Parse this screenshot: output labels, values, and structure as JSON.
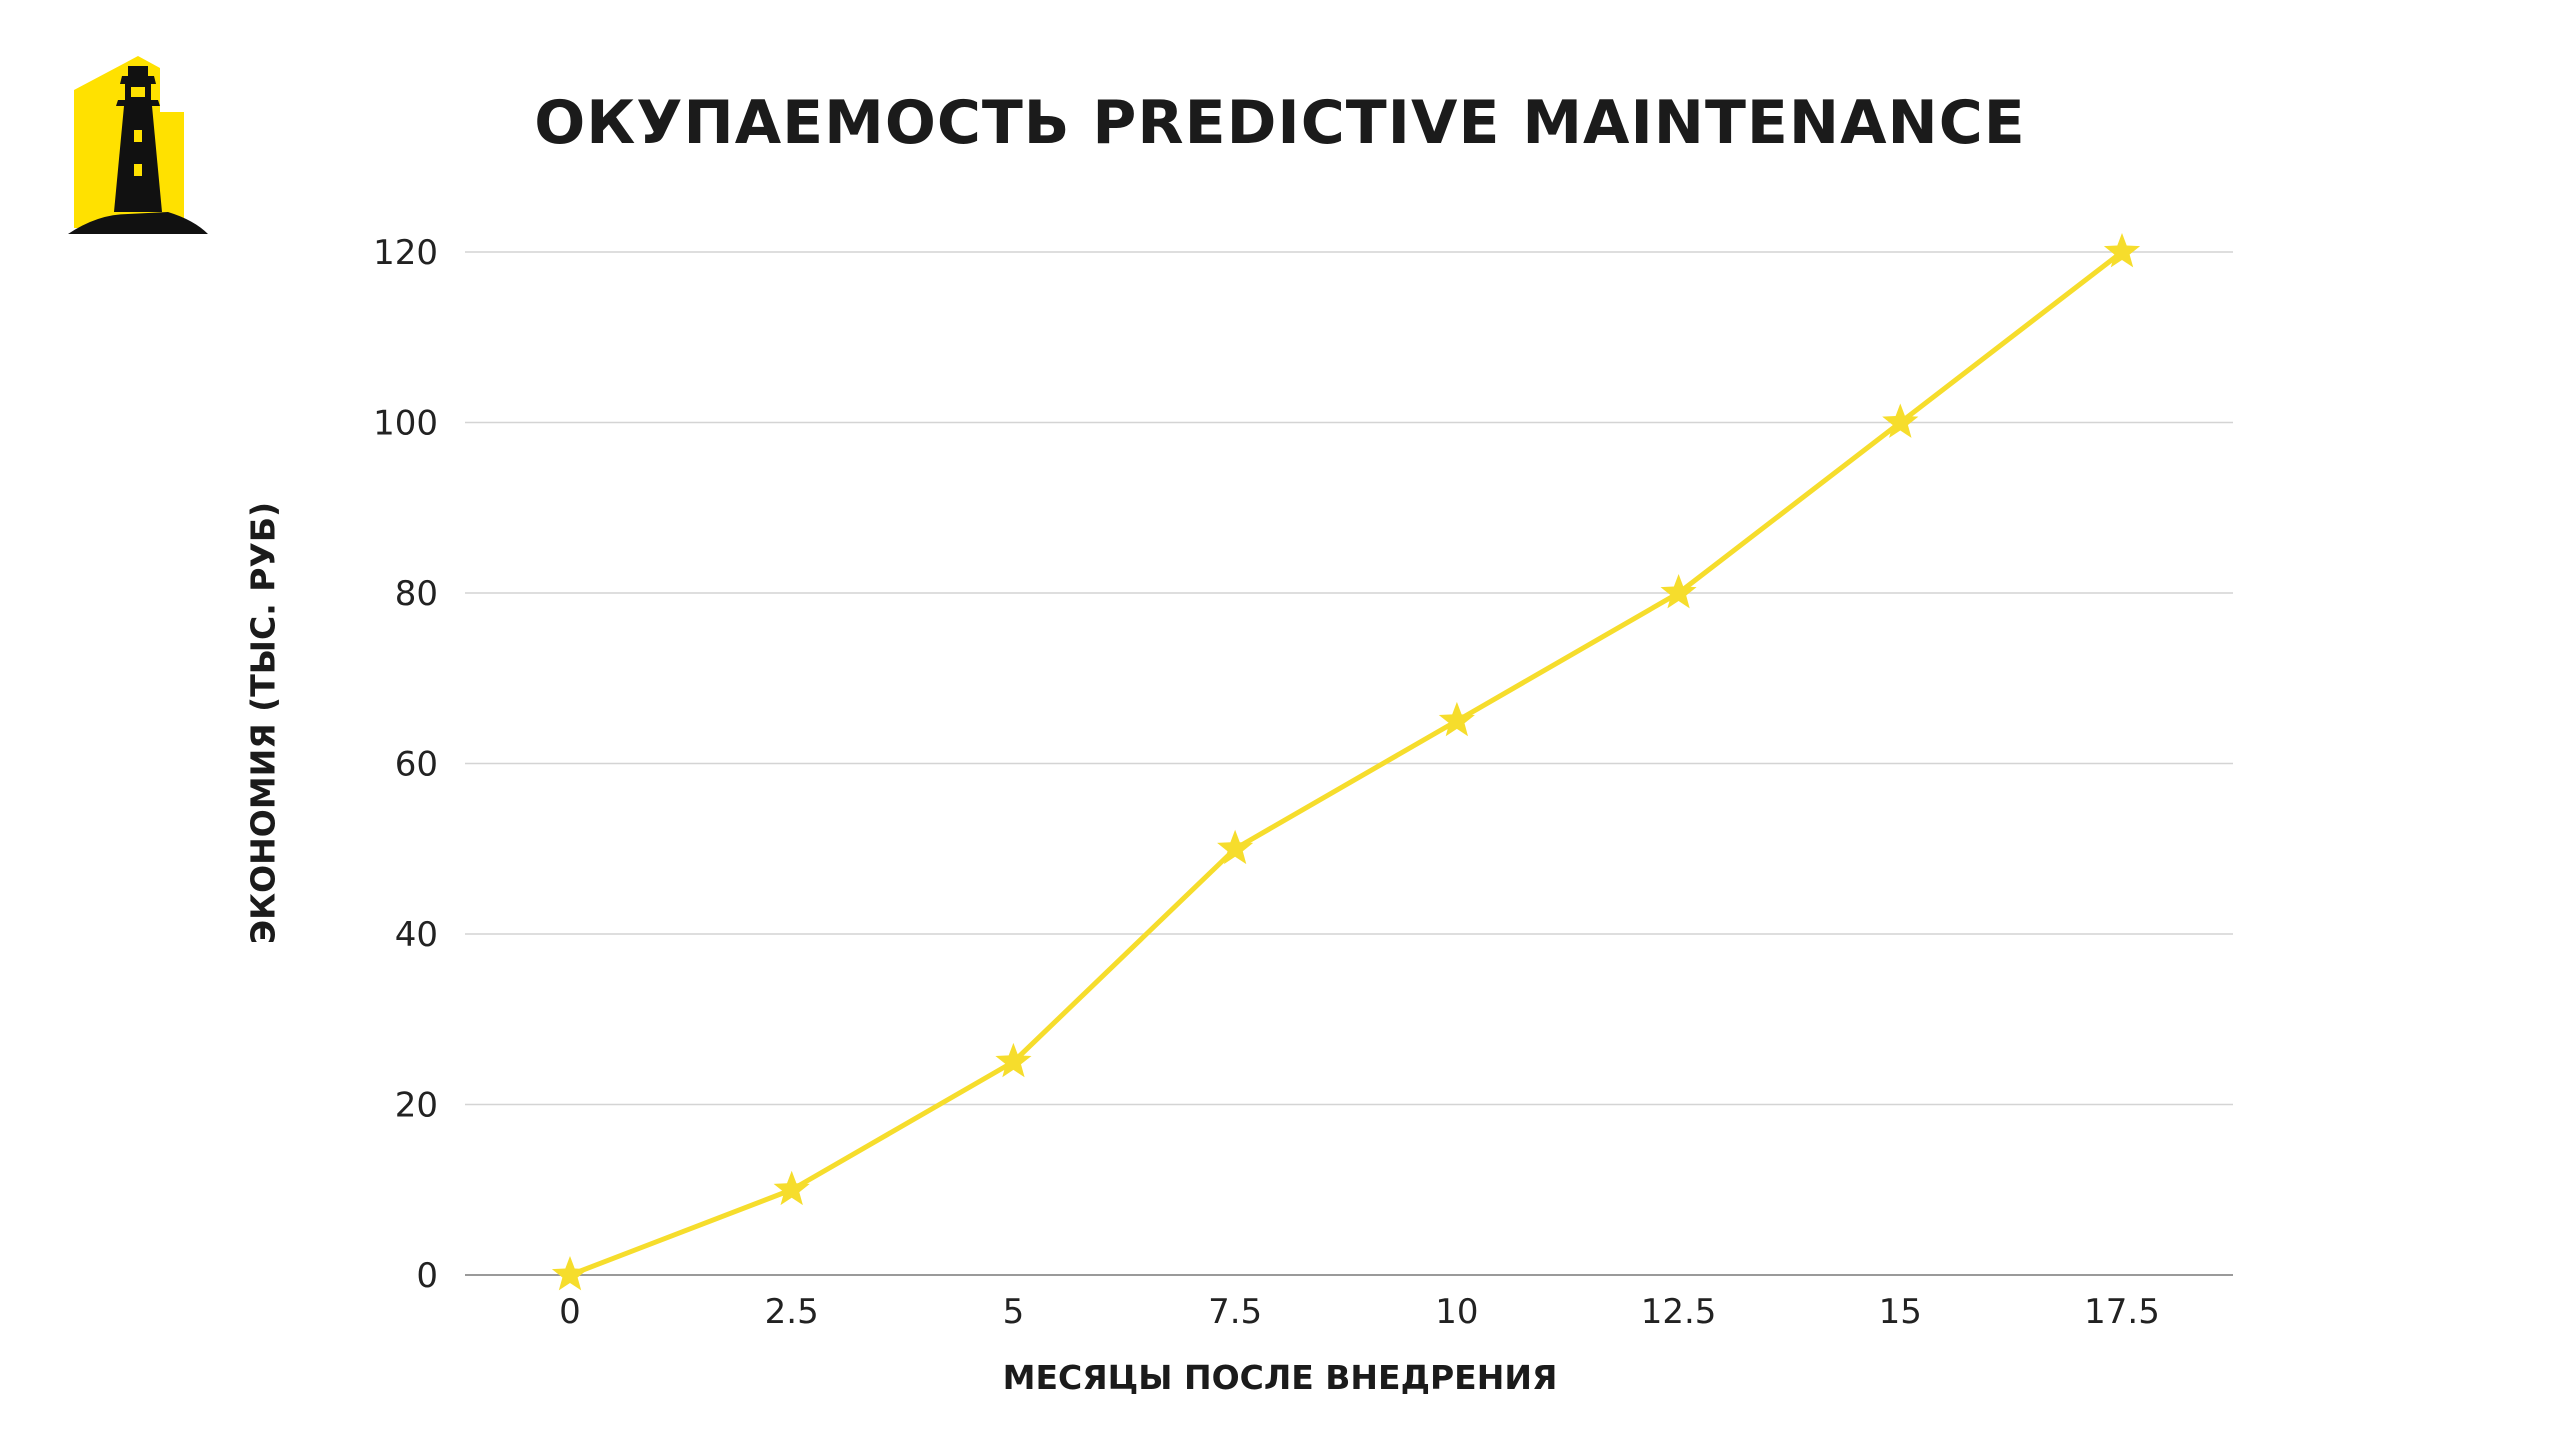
{
  "colors": {
    "line": "#f6dd2c",
    "marker": "#f6dd2c",
    "grid": "#d4d4d4",
    "axis": "#9a9a9a",
    "logo_bg": "#ffe100",
    "logo_fg": "#111111"
  },
  "logo": {
    "icon": "lighthouse-logo-icon"
  },
  "chart_data": {
    "type": "line",
    "title": "ОКУПАЕМОСТЬ PREDICTIVE MAINTENANCE",
    "xlabel": "МЕСЯЦЫ ПОСЛЕ ВНЕДРЕНИЯ",
    "ylabel": "ЭКОНОМИЯ (ТЫС. РУБ)",
    "x": [
      "0",
      "2.5",
      "5",
      "7.5",
      "10",
      "12.5",
      "15",
      "17.5"
    ],
    "yticks": [
      "0",
      "20",
      "40",
      "60",
      "80",
      "100",
      "120"
    ],
    "ylim": [
      0,
      120
    ],
    "grid": true,
    "marker": "star",
    "series": [
      {
        "values": [
          0,
          10,
          25,
          50,
          65,
          80,
          100,
          120
        ]
      }
    ]
  }
}
